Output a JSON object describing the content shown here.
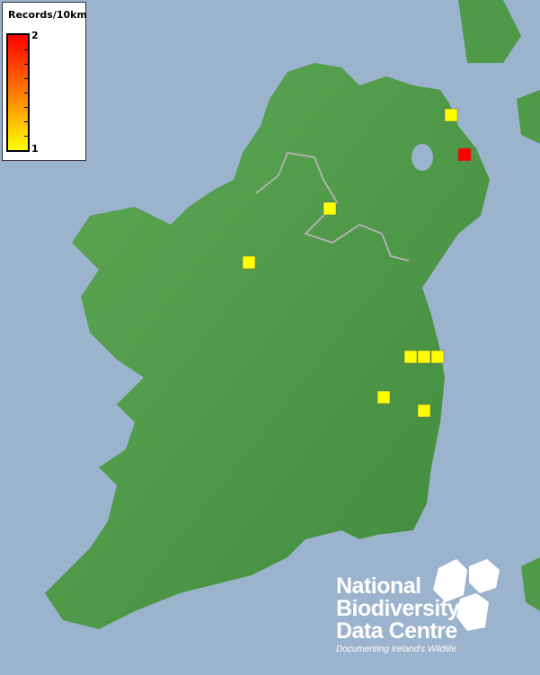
{
  "legend": {
    "title": "Records/10km",
    "max_label": "2",
    "min_label": "1",
    "max_color": "#ff0000",
    "min_color": "#ffff00"
  },
  "logo": {
    "line1": "National",
    "line2": "Biodiversity",
    "line3": "Data Centre",
    "tagline": "Documenting Ireland's Wildlife"
  },
  "records": [
    {
      "count": 1,
      "color": "#ffff00"
    },
    {
      "count": 2,
      "color": "#ff0000"
    },
    {
      "count": 1,
      "color": "#ffff00"
    },
    {
      "count": 1,
      "color": "#ffff00"
    },
    {
      "count": 1,
      "color": "#ffff00"
    },
    {
      "count": 1,
      "color": "#ffff00"
    },
    {
      "count": 1,
      "color": "#ffff00"
    },
    {
      "count": 1,
      "color": "#ffff00"
    },
    {
      "count": 1,
      "color": "#ffff00"
    }
  ]
}
